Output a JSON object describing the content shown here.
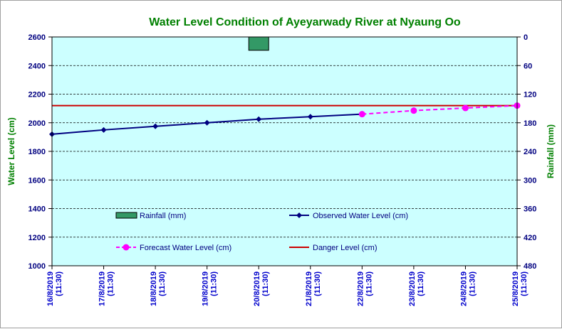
{
  "chart_data": {
    "type": "line",
    "title": "Water Level Condition  of Ayeyarwady  River at Nyaung Oo",
    "ylabel": "Water Level (cm)",
    "y2label": "Rainfall (mm)",
    "ylim": [
      1000,
      2600
    ],
    "yticks": [
      1000,
      1200,
      1400,
      1600,
      1800,
      2000,
      2200,
      2400,
      2600
    ],
    "y2lim": [
      480,
      0
    ],
    "y2ticks": [
      0,
      60,
      120,
      180,
      240,
      300,
      360,
      420,
      480
    ],
    "y2_inverted": true,
    "categories": [
      [
        "16/8/2019",
        "(11:30)"
      ],
      [
        "17/8/2019",
        "(11:30)"
      ],
      [
        "18/8/2019",
        "(11:30)"
      ],
      [
        "19/8/2019",
        "(11:30)"
      ],
      [
        "20/8/2019",
        "(11:30)"
      ],
      [
        "21/8/2019",
        "(11:30)"
      ],
      [
        "22/8/2019",
        "(11:30)"
      ],
      [
        "23/8/2019",
        "(11:30)"
      ],
      [
        "24/8/2019",
        "(11:30)"
      ],
      [
        "25/8/2019",
        "(11:30)"
      ]
    ],
    "grid": true,
    "background_color": "#ccffff",
    "series": [
      {
        "name": "Rainfall (mm)",
        "type": "bar",
        "axis": "right",
        "color": "#339966",
        "values": [
          0,
          0,
          0,
          0,
          28,
          0,
          0,
          0,
          0,
          0
        ]
      },
      {
        "name": "Observed Water Level (cm)",
        "type": "line",
        "axis": "left",
        "color": "#000080",
        "marker": "diamond",
        "values": [
          1920,
          1950,
          1975,
          2000,
          2025,
          2042,
          2060,
          null,
          null,
          null
        ]
      },
      {
        "name": "Forecast Water Level (cm)",
        "type": "line",
        "axis": "left",
        "color": "#ff00ff",
        "dashed": true,
        "marker": "circle",
        "values": [
          null,
          null,
          null,
          null,
          null,
          null,
          2060,
          2085,
          2103,
          2120
        ]
      },
      {
        "name": "Danger Level (cm)",
        "type": "line",
        "axis": "left",
        "color": "#cc0000",
        "constant": 2120
      }
    ]
  }
}
